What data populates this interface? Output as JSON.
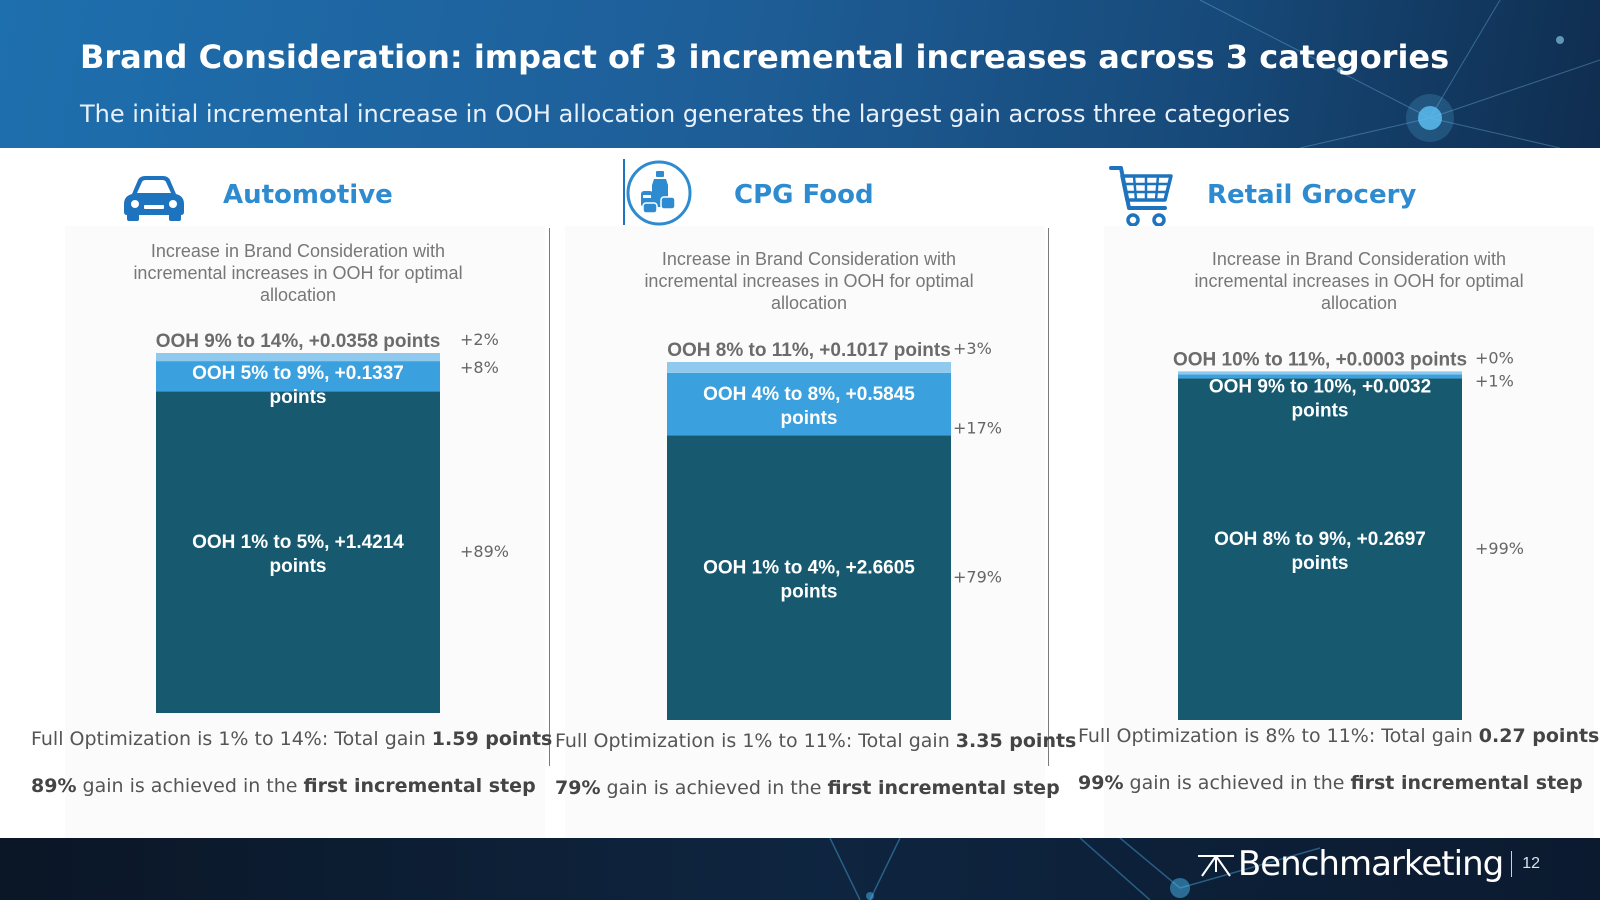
{
  "header": {
    "title": "Brand Consideration: impact of 3 incremental increases across 3 categories",
    "subtitle": "The initial incremental increase in OOH allocation generates the largest gain across three categories"
  },
  "colors": {
    "dark_bar": "#175a70",
    "light_bar": "#3aa0de",
    "lightest_bar": "#8fcaee",
    "title_blue": "#2e8bd0"
  },
  "panels": [
    {
      "name": "Automotive",
      "icon": "car-icon",
      "chart_subtitle": "Increase in Brand Consideration with incremental increases in OOH for optimal allocation",
      "footer_text": "Full Optimization is 1% to 14%: Total gain ",
      "footer_value": "1.59 points",
      "gain_pct": "89%",
      "gain_text": " gain is achieved in the ",
      "gain_bold": "first incremental step"
    },
    {
      "name": "CPG Food",
      "icon": "food-cans-icon",
      "chart_subtitle": "Increase in Brand Consideration with incremental increases in OOH for optimal allocation",
      "footer_text": "Full Optimization is 1% to 11%: Total gain ",
      "footer_value": "3.35 points",
      "gain_pct": "79%",
      "gain_text": " gain is achieved in the ",
      "gain_bold": "first incremental step"
    },
    {
      "name": "Retail Grocery",
      "icon": "shopping-cart-icon",
      "chart_subtitle": "Increase in Brand Consideration with incremental increases in OOH for optimal allocation",
      "footer_text": "Full Optimization is 8% to 11%: Total gain ",
      "footer_value": "0.27 points",
      "gain_pct": "99%",
      "gain_text": " gain is achieved in the ",
      "gain_bold": "first incremental step"
    }
  ],
  "chart_data": [
    {
      "type": "bar",
      "stacked": true,
      "title": "Increase in Brand Consideration with incremental increases in OOH for optimal allocation",
      "category": "Automotive",
      "series": [
        {
          "name": "OOH 1% to 5%",
          "value": 1.4214,
          "label": "OOH 1% to 5%, +1.4214 points",
          "share": "+89%",
          "color": "dark"
        },
        {
          "name": "OOH 5% to 9%",
          "value": 0.1337,
          "label": "OOH 5% to 9%, +0.1337 points",
          "share": "+8%",
          "color": "light"
        },
        {
          "name": "OOH 9% to 14%",
          "value": 0.0358,
          "label": "OOH 9% to 14%, +0.0358 points",
          "share": "+2%",
          "color": "lightest"
        }
      ]
    },
    {
      "type": "bar",
      "stacked": true,
      "title": "Increase in Brand Consideration with incremental increases in OOH for optimal allocation",
      "category": "CPG Food",
      "series": [
        {
          "name": "OOH 1% to 4%",
          "value": 2.6605,
          "label": "OOH 1% to 4%, +2.6605 points",
          "share": "+79%",
          "color": "dark"
        },
        {
          "name": "OOH 4% to 8%",
          "value": 0.5845,
          "label": "OOH 4% to 8%, +0.5845 points",
          "share": "+17%",
          "color": "light"
        },
        {
          "name": "OOH 8% to 11%",
          "value": 0.1017,
          "label": "OOH 8% to 11%, +0.1017 points",
          "share": "+3%",
          "color": "lightest"
        }
      ]
    },
    {
      "type": "bar",
      "stacked": true,
      "title": "Increase in Brand Consideration with incremental increases in OOH for optimal allocation",
      "category": "Retail Grocery",
      "series": [
        {
          "name": "OOH 8% to 9%",
          "value": 0.2697,
          "label": "OOH 8% to 9%, +0.2697 points",
          "share": "+99%",
          "color": "dark"
        },
        {
          "name": "OOH 9% to 10%",
          "value": 0.0032,
          "label": "OOH 9% to 10%, +0.0032 points",
          "share": "+1%",
          "color": "light"
        },
        {
          "name": "OOH 10% to 11%",
          "value": 0.0003,
          "label": "OOH 10% to 11%, +0.0003 points",
          "share": "+0%",
          "color": "lightest"
        }
      ]
    }
  ],
  "footer": {
    "brand": "Benchmarketing",
    "page_number": "12"
  }
}
